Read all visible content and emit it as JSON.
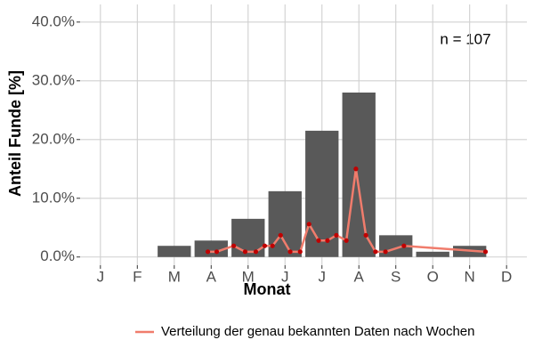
{
  "chart_data": {
    "type": "bar",
    "categories": [
      "J",
      "F",
      "M",
      "A",
      "M",
      "J",
      "J",
      "A",
      "S",
      "O",
      "N",
      "D"
    ],
    "values": [
      0,
      0,
      1.9,
      2.8,
      6.5,
      11.2,
      21.5,
      28.0,
      3.7,
      0.9,
      1.9,
      0
    ],
    "color": "#595959",
    "xlabel": "Monat",
    "ylabel": "Anteil Funde [%]",
    "annotation": "n = 107",
    "xlim": [
      0.45,
      12.55
    ],
    "ylim": [
      -1.4,
      43
    ],
    "yticks": [
      {
        "value": 0,
        "label": "0.0%"
      },
      {
        "value": 10,
        "label": "10.0%"
      },
      {
        "value": 20,
        "label": "20.0%"
      },
      {
        "value": 30,
        "label": "30.0%"
      },
      {
        "value": 40,
        "label": "40.0%"
      }
    ],
    "grid": true,
    "legend": "bottom",
    "series": [
      {
        "name": "Verteilung der genau bekannten Daten nach Wochen",
        "type": "line",
        "color": "#f07c6c",
        "marker_color": "#c00000",
        "x": [
          3.91,
          4.15,
          4.61,
          4.92,
          5.21,
          5.45,
          5.66,
          5.88,
          6.14,
          6.41,
          6.65,
          6.91,
          7.15,
          7.39,
          7.66,
          7.92,
          8.19,
          8.45,
          8.72,
          9.22,
          11.43
        ],
        "values": [
          0.9,
          0.9,
          1.9,
          0.9,
          0.9,
          1.9,
          1.9,
          3.7,
          0.9,
          0.9,
          5.6,
          2.8,
          2.8,
          3.7,
          2.8,
          15.0,
          3.7,
          0.9,
          0.9,
          1.9,
          0.9
        ]
      }
    ]
  }
}
